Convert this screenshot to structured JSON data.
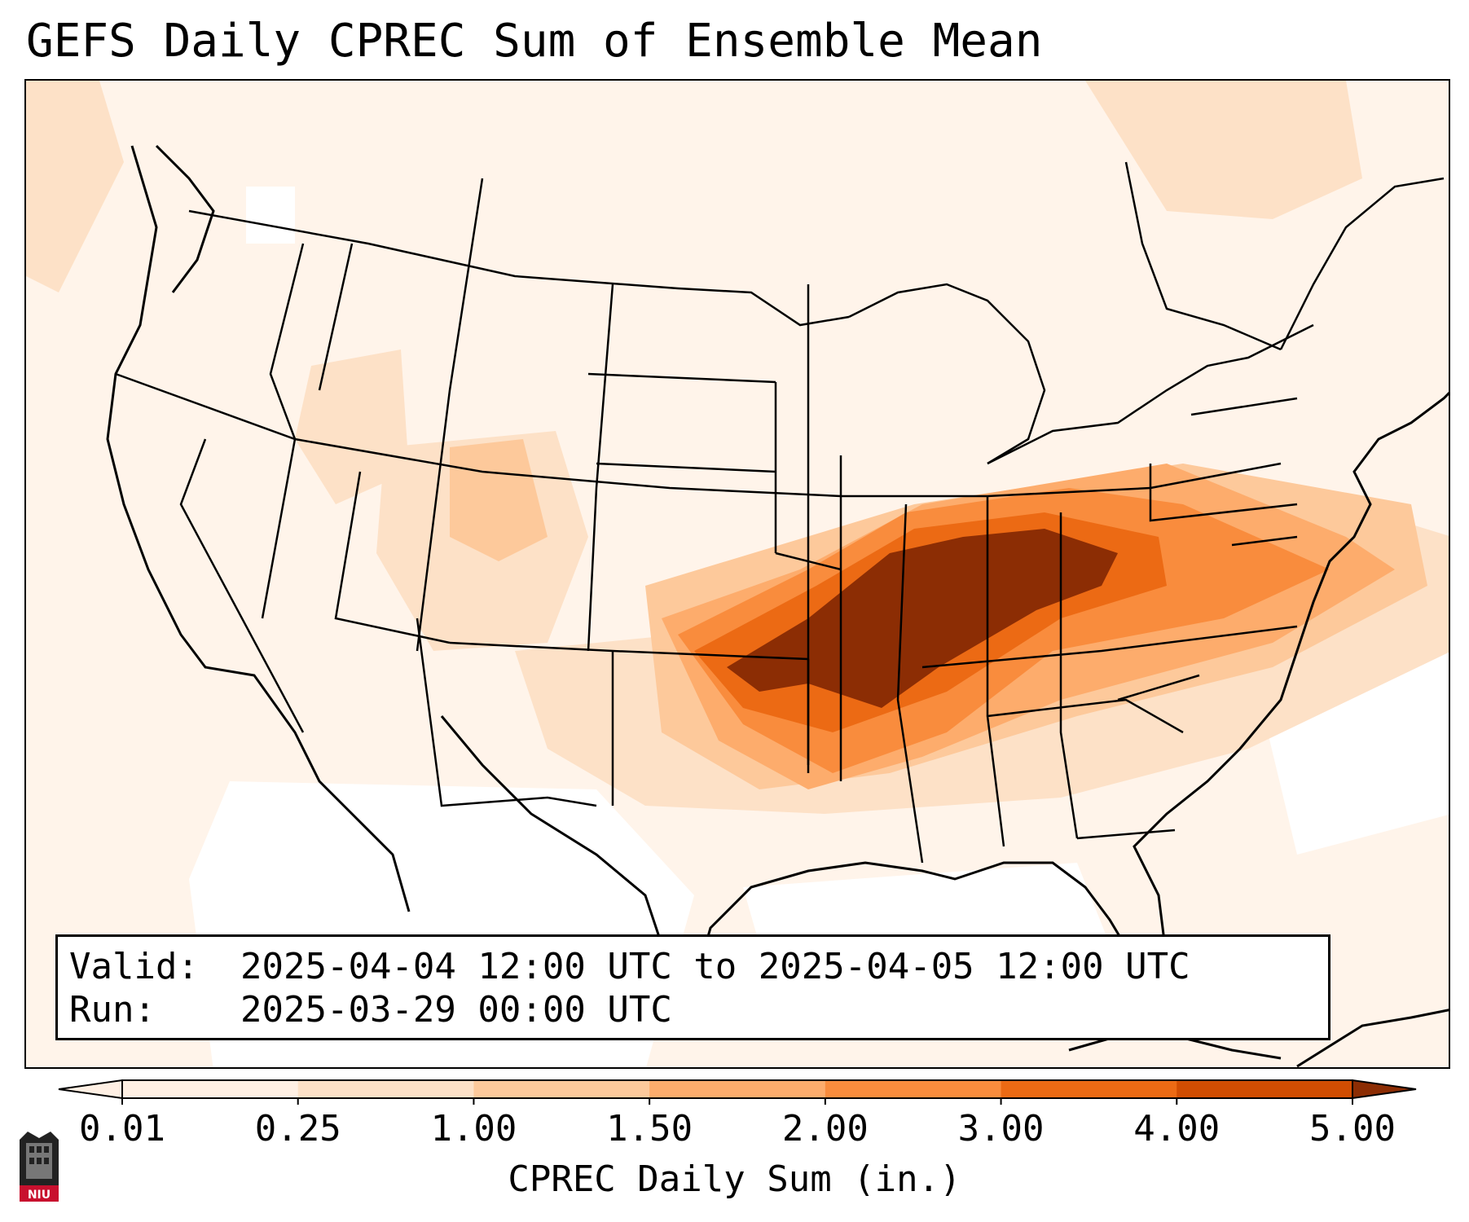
{
  "title": "GEFS Daily CPREC Sum of Ensemble Mean",
  "info": {
    "valid_label": "Valid:",
    "valid_value": "2025-04-04 12:00 UTC to 2025-04-05 12:00 UTC",
    "run_label": "Run:",
    "run_value": "2025-03-29 00:00 UTC"
  },
  "colorbar": {
    "label": "CPREC Daily Sum (in.)",
    "ticks": [
      "0.01",
      "0.25",
      "1.00",
      "1.50",
      "2.00",
      "3.00",
      "4.00",
      "5.00"
    ],
    "colors": [
      "#fff0e4",
      "#fde1c7",
      "#fdc99b",
      "#fdac6c",
      "#f98c3d",
      "#ec6a14",
      "#d14d02",
      "#8c2d04"
    ],
    "extend": "both"
  },
  "map": {
    "projection": "lambert-conformal",
    "region": "CONUS",
    "overlays": [
      "state-borders",
      "coastlines"
    ]
  },
  "logo": {
    "text": "NIU"
  }
}
